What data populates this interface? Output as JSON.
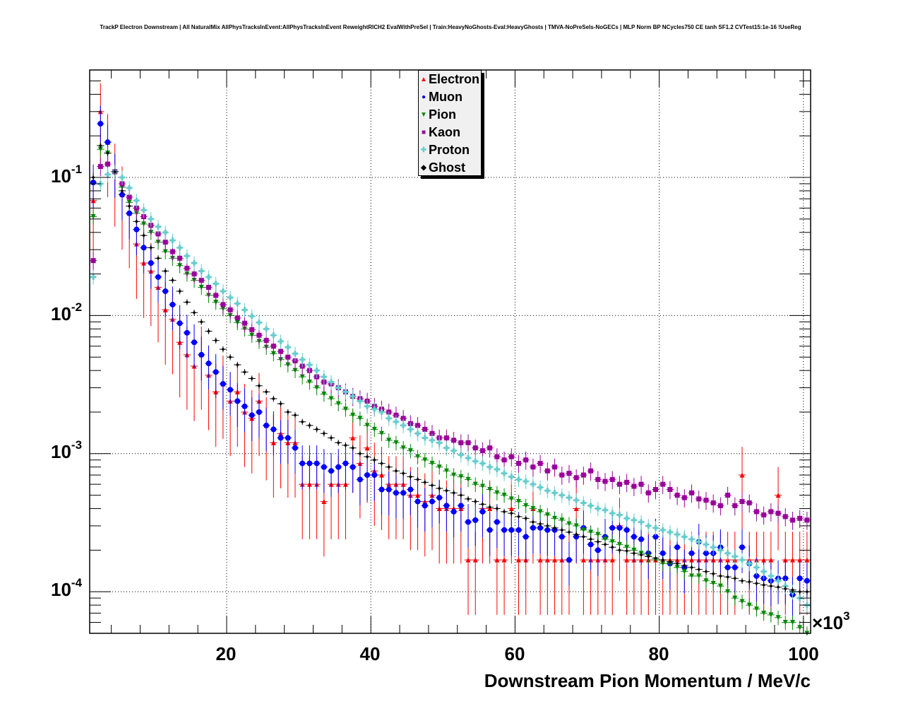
{
  "chart_data": {
    "type": "scatter",
    "title": "TrackP Electron Downstream | All NaturalMix AllPhysTracksInEvent:AllPhysTracksInEvent ReweightRICH2 EvalWithPreSel | Train:HeavyNoGhosts-Eval:HeavyGhosts | TMVA-NoPreSels-NoGECs | MLP Norm BP NCycles750 CE tanh SF1.2 CVTest15:1e-16 !UseReg",
    "xlabel": "Downstream Pion Momentum / MeV/c",
    "x_multiplier_label": "×10",
    "x_multiplier_exp": "3",
    "ylabel": "",
    "xlim": [
      1,
      101
    ],
    "ylim": [
      5e-05,
      0.6
    ],
    "yscale": "log",
    "grid": true,
    "legend_position": "top-center",
    "x_ticks": [
      {
        "value": 20,
        "label": "20"
      },
      {
        "value": 40,
        "label": "40"
      },
      {
        "value": 60,
        "label": "60"
      },
      {
        "value": 80,
        "label": "80"
      },
      {
        "value": 100,
        "label": "100"
      }
    ],
    "y_ticks": [
      {
        "value": 0.1,
        "base": "10",
        "exp": "-1"
      },
      {
        "value": 0.01,
        "base": "10",
        "exp": "-2"
      },
      {
        "value": 0.001,
        "base": "10",
        "exp": "-3"
      },
      {
        "value": 0.0001,
        "base": "10",
        "exp": "-4"
      }
    ],
    "x_bin_start": 1.5,
    "x_bin_step": 1,
    "series": [
      {
        "name": "Electron",
        "color": "#ff0000",
        "marker": "triangle-up",
        "rel_err": 0.6,
        "values": [
          0.068,
          0.3,
          0.18,
          0.11,
          0.075,
          0.055,
          0.033,
          0.024,
          0.021,
          0.016,
          0.011,
          0.0094,
          0.0064,
          0.0052,
          0.0043,
          0.0052,
          0.0037,
          0.0028,
          0.0032,
          0.0024,
          0.0028,
          0.002,
          0.0018,
          0.0024,
          0.0016,
          0.0012,
          0.0014,
          0.0012,
          0.0012,
          0.0006,
          0.0006,
          0.0006,
          0.00045,
          0.0006,
          0.0006,
          0.0006,
          0.0013,
          0.00085,
          0.0011,
          0.00075,
          0.0007,
          0.0006,
          0.0006,
          0.0006,
          0.0005,
          0.0005,
          0.00045,
          0.0005,
          0.0004,
          0.0004,
          0.0004,
          0.0004,
          0.00017,
          0.00017,
          0.0004,
          0.0004,
          0.00017,
          0.00017,
          0.0004,
          0.00017,
          0.00017,
          0.0004,
          0.00017,
          0.00017,
          0.00017,
          0.00017,
          0.00017,
          0.0004,
          0.00017,
          0.00017,
          0.00017,
          0.00017,
          0.00017,
          0.0003,
          0.00017,
          0.00017,
          0.00017,
          0.00017,
          0.00017,
          0.00017,
          0.00017,
          0.00017,
          0.00017,
          0.00017,
          0.00017,
          0.00017,
          0.00017,
          0.00017,
          0.00017,
          0.00017,
          0.0007,
          0.00017,
          0.00017,
          0.00017,
          0.00017,
          0.0005,
          0.00017,
          0.00017,
          0.00017,
          0.00017
        ]
      },
      {
        "name": "Muon",
        "color": "#0000ff",
        "marker": "circle",
        "rel_err": 0.35,
        "values": [
          0.092,
          0.245,
          0.18,
          0.11,
          0.075,
          0.055,
          0.042,
          0.031,
          0.024,
          0.019,
          0.015,
          0.012,
          0.0088,
          0.0075,
          0.0064,
          0.0052,
          0.0045,
          0.0039,
          0.0032,
          0.0029,
          0.0024,
          0.0022,
          0.0019,
          0.002,
          0.0016,
          0.0015,
          0.0013,
          0.0013,
          0.0011,
          0.00085,
          0.00085,
          0.00085,
          0.0008,
          0.00075,
          0.0008,
          0.00085,
          0.0008,
          0.00065,
          0.0007,
          0.0007,
          0.00055,
          0.00055,
          0.00052,
          0.00052,
          0.00055,
          0.00045,
          0.00042,
          0.00045,
          0.00048,
          0.00042,
          0.00038,
          0.00042,
          0.00032,
          0.00033,
          0.00038,
          0.00028,
          0.00032,
          0.00028,
          0.00028,
          0.00028,
          0.00025,
          0.00029,
          0.00029,
          0.00028,
          0.00028,
          0.00025,
          0.00017,
          0.00025,
          0.00029,
          0.00022,
          0.0002,
          0.00025,
          0.00029,
          0.00029,
          0.00028,
          0.00025,
          0.00024,
          0.00019,
          0.00025,
          0.00019,
          0.00016,
          0.00021,
          0.00015,
          0.00019,
          0.00023,
          0.00019,
          0.00019,
          0.00021,
          0.00015,
          0.00015,
          0.00021,
          0.00016,
          0.00013,
          0.000125,
          0.00012,
          0.000125,
          0.000125,
          9.5e-05,
          0.000125,
          0.00012
        ]
      },
      {
        "name": "Pion",
        "color": "#008800",
        "marker": "triangle-down",
        "rel_err": 0.12,
        "values": [
          0.052,
          0.16,
          0.15,
          0.11,
          0.085,
          0.066,
          0.055,
          0.046,
          0.04,
          0.034,
          0.029,
          0.026,
          0.023,
          0.02,
          0.018,
          0.016,
          0.014,
          0.0125,
          0.0112,
          0.01,
          0.0089,
          0.008,
          0.0072,
          0.0065,
          0.0059,
          0.0053,
          0.0048,
          0.0044,
          0.004,
          0.0036,
          0.0033,
          0.003,
          0.0027,
          0.0025,
          0.0023,
          0.0021,
          0.0019,
          0.0018,
          0.0016,
          0.0015,
          0.0014,
          0.00125,
          0.0012,
          0.0011,
          0.00105,
          0.00095,
          0.0009,
          0.00085,
          0.0008,
          0.00075,
          0.0007,
          0.00068,
          0.00065,
          0.0006,
          0.00058,
          0.00055,
          0.00052,
          0.0005,
          0.00047,
          0.00045,
          0.00042,
          0.0004,
          0.00038,
          0.00036,
          0.00034,
          0.00033,
          0.00031,
          0.0003,
          0.00028,
          0.00027,
          0.00026,
          0.00024,
          0.00023,
          0.00022,
          0.00021,
          0.0002,
          0.00019,
          0.00018,
          0.00017,
          0.00016,
          0.00016,
          0.00015,
          0.00014,
          0.00013,
          0.00013,
          0.00012,
          0.000115,
          0.00011,
          0.0001,
          9e-05,
          8.5e-05,
          8e-05,
          7.5e-05,
          7e-05,
          6.8e-05,
          6.5e-05,
          6e-05,
          6e-05,
          5.5e-05,
          5e-05
        ]
      },
      {
        "name": "Kaon",
        "color": "#990099",
        "marker": "square",
        "rel_err": 0.15,
        "values": [
          0.025,
          0.12,
          0.125,
          0.11,
          0.09,
          0.072,
          0.06,
          0.052,
          0.045,
          0.039,
          0.034,
          0.029,
          0.026,
          0.022,
          0.02,
          0.018,
          0.016,
          0.014,
          0.012,
          0.011,
          0.0096,
          0.0088,
          0.0079,
          0.0072,
          0.0066,
          0.006,
          0.0055,
          0.005,
          0.0047,
          0.0043,
          0.004,
          0.0036,
          0.0033,
          0.0032,
          0.003,
          0.0028,
          0.0026,
          0.0025,
          0.0024,
          0.0022,
          0.0021,
          0.002,
          0.0019,
          0.0018,
          0.00165,
          0.0016,
          0.0015,
          0.0014,
          0.0013,
          0.0013,
          0.00125,
          0.0012,
          0.0012,
          0.0011,
          0.00105,
          0.0011,
          0.00095,
          0.0009,
          0.00095,
          0.00085,
          0.0009,
          0.0008,
          0.00085,
          0.00075,
          0.0008,
          0.0007,
          0.00072,
          0.00067,
          0.0007,
          0.00075,
          0.00065,
          0.00063,
          0.00065,
          0.0006,
          0.00062,
          0.00058,
          0.0006,
          0.00052,
          0.00055,
          0.0006,
          0.00055,
          0.0005,
          0.00048,
          0.00052,
          0.00047,
          0.00046,
          0.00044,
          0.00042,
          0.0005,
          0.00042,
          0.00045,
          0.00044,
          0.00038,
          0.00036,
          0.00038,
          0.00037,
          0.00035,
          0.00033,
          0.00034,
          0.00033
        ]
      },
      {
        "name": "Proton",
        "color": "#66cccc",
        "marker": "cross",
        "rel_err": 0.12,
        "values": [
          0.019,
          0.09,
          0.105,
          0.11,
          0.1,
          0.084,
          0.068,
          0.058,
          0.05,
          0.044,
          0.04,
          0.035,
          0.031,
          0.027,
          0.024,
          0.021,
          0.019,
          0.017,
          0.015,
          0.0135,
          0.0122,
          0.011,
          0.0099,
          0.0089,
          0.008,
          0.0072,
          0.0065,
          0.0059,
          0.0053,
          0.0048,
          0.0044,
          0.004,
          0.0036,
          0.0033,
          0.003,
          0.0028,
          0.0026,
          0.0024,
          0.0022,
          0.0021,
          0.002,
          0.0018,
          0.0017,
          0.0016,
          0.0015,
          0.0014,
          0.0013,
          0.00125,
          0.0012,
          0.0011,
          0.00105,
          0.00098,
          0.00093,
          0.00088,
          0.00085,
          0.0008,
          0.00077,
          0.00072,
          0.00068,
          0.00065,
          0.00063,
          0.0006,
          0.00057,
          0.00054,
          0.00052,
          0.0005,
          0.00048,
          0.00046,
          0.00044,
          0.00042,
          0.0004,
          0.00039,
          0.00037,
          0.00036,
          0.00034,
          0.00033,
          0.00032,
          0.0003,
          0.00029,
          0.00028,
          0.00027,
          0.00026,
          0.00025,
          0.00024,
          0.00023,
          0.00022,
          0.00021,
          0.0002,
          0.00019,
          0.00018,
          0.00017,
          0.00016,
          0.00015,
          0.00014,
          0.00013,
          0.00012,
          0.00011,
          0.0001,
          9e-05,
          8e-05
        ]
      },
      {
        "name": "Ghost",
        "color": "#000000",
        "marker": "small-diamond",
        "rel_err": 0.05,
        "values": [
          0.1,
          0.17,
          0.15,
          0.11,
          0.08,
          0.062,
          0.048,
          0.038,
          0.031,
          0.026,
          0.021,
          0.018,
          0.015,
          0.0125,
          0.0105,
          0.009,
          0.0077,
          0.0066,
          0.0057,
          0.005,
          0.0044,
          0.0039,
          0.0035,
          0.0031,
          0.0028,
          0.0025,
          0.0023,
          0.002,
          0.0019,
          0.0017,
          0.0016,
          0.0015,
          0.0014,
          0.0013,
          0.0012,
          0.00115,
          0.0011,
          0.001,
          0.00095,
          0.0009,
          0.00085,
          0.0008,
          0.00075,
          0.00072,
          0.00068,
          0.00065,
          0.00062,
          0.00059,
          0.00056,
          0.00054,
          0.00052,
          0.0005,
          0.00047,
          0.00045,
          0.00043,
          0.00041,
          0.0004,
          0.00038,
          0.00037,
          0.00035,
          0.00034,
          0.00032,
          0.00031,
          0.0003,
          0.00029,
          0.00028,
          0.00027,
          0.00026,
          0.00025,
          0.00024,
          0.00023,
          0.00022,
          0.00021,
          0.0002,
          0.000198,
          0.00019,
          0.000185,
          0.00018,
          0.000175,
          0.00017,
          0.000165,
          0.00016,
          0.000155,
          0.00015,
          0.000145,
          0.00014,
          0.000135,
          0.00013,
          0.000128,
          0.000125,
          0.00012,
          0.000118,
          0.000115,
          0.000112,
          0.00011,
          0.000108,
          0.000105,
          0.000103,
          0.0001,
          0.0001
        ]
      }
    ]
  }
}
